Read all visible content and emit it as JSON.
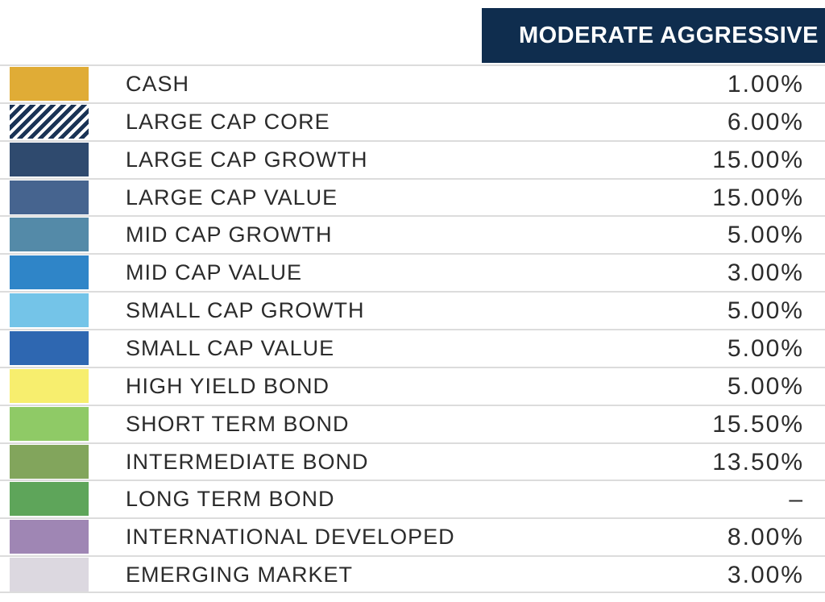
{
  "header": {
    "title": "MODERATE AGGRESSIVE"
  },
  "table": {
    "rows": [
      [
        "CASH",
        "1.00%"
      ],
      [
        "LARGE CAP CORE",
        "6.00%"
      ],
      [
        "LARGE CAP GROWTH",
        "15.00%"
      ],
      [
        "LARGE CAP VALUE",
        "15.00%"
      ],
      [
        "MID CAP GROWTH",
        "5.00%"
      ],
      [
        "MID CAP VALUE",
        "3.00%"
      ],
      [
        "SMALL CAP GROWTH",
        "5.00%"
      ],
      [
        "SMALL CAP VALUE",
        "5.00%"
      ],
      [
        "HIGH YIELD BOND",
        "5.00%"
      ],
      [
        "SHORT TERM BOND",
        "15.50%"
      ],
      [
        "INTERMEDIATE BOND",
        "13.50%"
      ],
      [
        "LONG TERM BOND",
        "–"
      ],
      [
        "INTERNATIONAL DEVELOPED",
        "8.00%"
      ],
      [
        "EMERGING MARKET",
        "3.00%"
      ]
    ]
  }
}
